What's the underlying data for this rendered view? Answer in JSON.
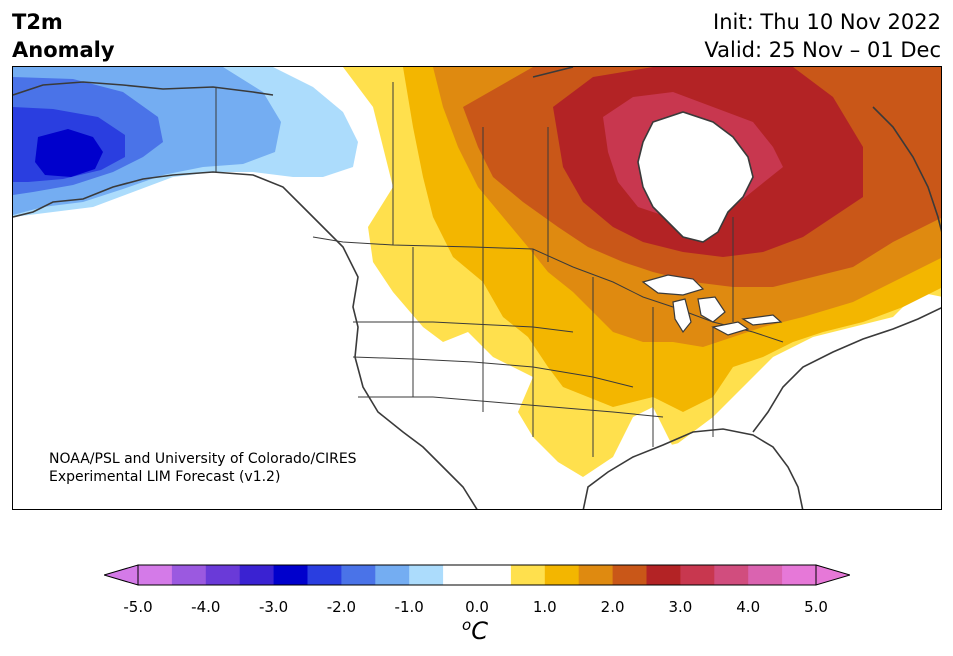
{
  "title": {
    "variable": "T2m",
    "quantity": "Anomaly",
    "init": "Init: Thu 10 Nov 2022",
    "valid": "Valid: 25 Nov – 01 Dec"
  },
  "credit": {
    "line1": "NOAA/PSL and University of Colorado/CIRES",
    "line2": "Experimental LIM Forecast (v1.2)"
  },
  "colorbar": {
    "unit_symbol": "o",
    "unit_letter": "C",
    "ticks": [
      "-5.0",
      "-4.0",
      "-3.0",
      "-2.0",
      "-1.0",
      "0.0",
      "1.0",
      "2.0",
      "3.0",
      "4.0",
      "5.0"
    ],
    "colors": [
      "#d47ae8",
      "#9b59e0",
      "#6a3ad8",
      "#3a22d2",
      "#0000cc",
      "#2a3ee0",
      "#4a73e8",
      "#74adf2",
      "#acdcfc",
      "#ffffff",
      "#ffffff",
      "#ffe04d",
      "#f3b600",
      "#df8a10",
      "#c95718",
      "#b32325",
      "#c8374f",
      "#d14d7e",
      "#da63b0",
      "#e678d8"
    ],
    "under_color": "#d47ae8",
    "over_color": "#e678d8"
  }
}
